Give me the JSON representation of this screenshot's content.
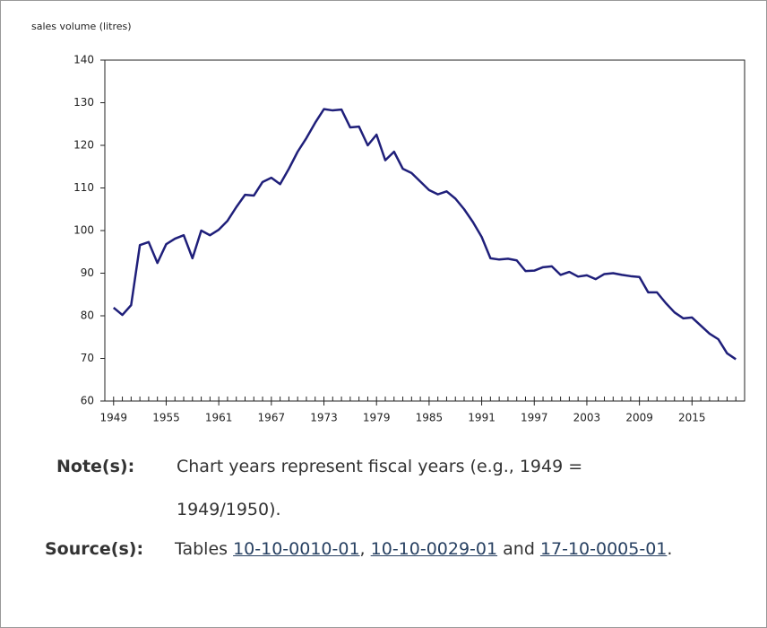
{
  "chart_data": {
    "type": "line",
    "y_label": "sales volume (litres)",
    "x": [
      1949,
      1950,
      1951,
      1952,
      1953,
      1954,
      1955,
      1956,
      1957,
      1958,
      1959,
      1960,
      1961,
      1962,
      1963,
      1964,
      1965,
      1966,
      1967,
      1968,
      1969,
      1970,
      1971,
      1972,
      1973,
      1974,
      1975,
      1976,
      1977,
      1978,
      1979,
      1980,
      1981,
      1982,
      1983,
      1984,
      1985,
      1986,
      1987,
      1988,
      1989,
      1990,
      1991,
      1992,
      1993,
      1994,
      1995,
      1996,
      1997,
      1998,
      1999,
      2000,
      2001,
      2002,
      2003,
      2004,
      2005,
      2006,
      2007,
      2008,
      2009,
      2010,
      2011,
      2012,
      2013,
      2014,
      2015,
      2016,
      2017,
      2018,
      2019,
      2020
    ],
    "series": [
      {
        "color": "#1f1f7a",
        "values": [
          81.9,
          80.2,
          82.5,
          96.6,
          97.3,
          92.4,
          96.8,
          98.1,
          98.9,
          93.5,
          100,
          98.9,
          100.2,
          102.3,
          105.5,
          108.4,
          108.2,
          111.4,
          112.4,
          110.9,
          114.5,
          118.5,
          121.7,
          125.3,
          128.5,
          128.2,
          128.4,
          124.2,
          124.4,
          120,
          122.5,
          116.5,
          118.5,
          114.5,
          113.5,
          111.5,
          109.5,
          108.5,
          109.2,
          107.5,
          105,
          102,
          98.5,
          93.5,
          93.2,
          93.4,
          93,
          90.5,
          90.6,
          91.4,
          91.6,
          89.6,
          90.3,
          89.2,
          89.5,
          88.6,
          89.8,
          90,
          89.6,
          89.3,
          89.1,
          85.5,
          85.5,
          83,
          80.8,
          79.4,
          79.6,
          77.7,
          75.8,
          74.5,
          71.2,
          69.8
        ]
      }
    ],
    "xlim": [
      1948,
      2021
    ],
    "xticks": [
      1949,
      1955,
      1961,
      1967,
      1973,
      1979,
      1985,
      1991,
      1997,
      2003,
      2009,
      2015
    ],
    "ylim": [
      60,
      140
    ],
    "yticks": [
      60,
      70,
      80,
      90,
      100,
      110,
      120,
      130,
      140
    ]
  },
  "notes": {
    "note_label": "Note(s):",
    "note_text": "Chart years represent fiscal years (e.g., 1949 = 1949/1950).",
    "source_label": "Source(s):",
    "source_parts": [
      "Tables",
      "10-10-0010-01",
      ",",
      "10-10-0029-01",
      "and",
      "17-10-0005-01",
      "."
    ]
  }
}
